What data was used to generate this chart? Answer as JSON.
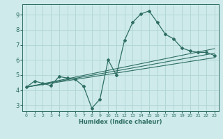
{
  "xlabel": "Humidex (Indice chaleur)",
  "bg_color": "#ceeaea",
  "grid_color": "#aed4d4",
  "line_color": "#2e6e64",
  "xlim": [
    -0.5,
    23.5
  ],
  "ylim": [
    2.6,
    9.7
  ],
  "xticks": [
    0,
    1,
    2,
    3,
    4,
    5,
    6,
    7,
    8,
    9,
    10,
    11,
    12,
    13,
    14,
    15,
    16,
    17,
    18,
    19,
    20,
    21,
    22,
    23
  ],
  "yticks": [
    3,
    4,
    5,
    6,
    7,
    8,
    9
  ],
  "line1_x": [
    0,
    1,
    2,
    3,
    4,
    5,
    6,
    7,
    8,
    9,
    10,
    11,
    12,
    13,
    14,
    15,
    16,
    17,
    18,
    19,
    20,
    21,
    22,
    23
  ],
  "line1_y": [
    4.2,
    4.6,
    4.45,
    4.3,
    4.9,
    4.8,
    4.7,
    4.25,
    2.8,
    3.4,
    6.0,
    5.0,
    7.3,
    8.5,
    9.05,
    9.25,
    8.5,
    7.7,
    7.4,
    6.8,
    6.6,
    6.5,
    6.5,
    6.3
  ],
  "line2_x": [
    0,
    23
  ],
  "line2_y": [
    4.2,
    6.15
  ],
  "line3_x": [
    0,
    23
  ],
  "line3_y": [
    4.2,
    6.45
  ],
  "line4_x": [
    0,
    23
  ],
  "line4_y": [
    4.2,
    6.75
  ]
}
